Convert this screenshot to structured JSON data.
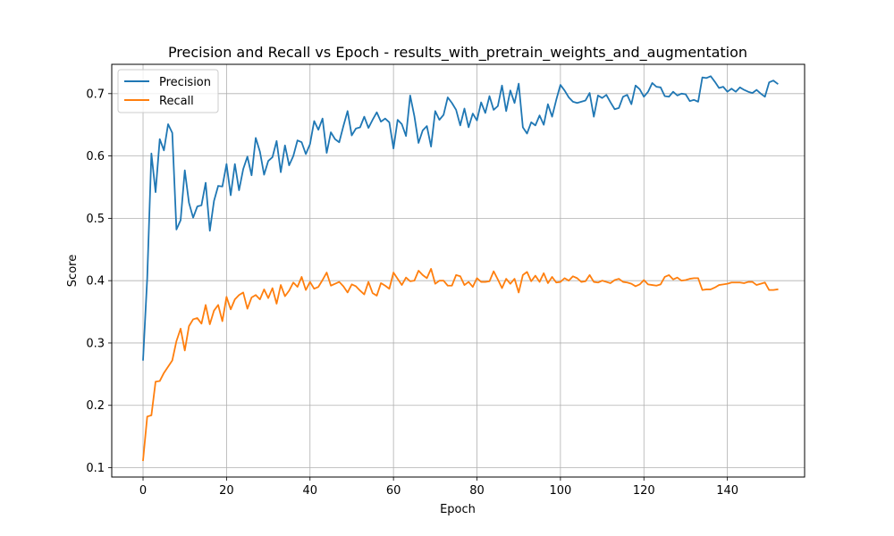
{
  "chart_data": {
    "type": "line",
    "title": "Precision and Recall vs Epoch - results_with_pretrain_weights_and_augmentation",
    "xlabel": "Epoch",
    "ylabel": "Score",
    "xlim": [
      -7.5,
      158.5
    ],
    "ylim": [
      0.085,
      0.747
    ],
    "grid": true,
    "legend_position": "top-left",
    "x_ticks": [
      0,
      20,
      40,
      60,
      80,
      100,
      120,
      140
    ],
    "y_ticks": [
      0.1,
      0.2,
      0.3,
      0.4,
      0.5,
      0.6,
      0.7
    ],
    "y_tick_labels": [
      "0.1",
      "0.2",
      "0.3",
      "0.4",
      "0.5",
      "0.6",
      "0.7"
    ],
    "series": [
      {
        "name": "Precision",
        "color": "#1f77b4",
        "values": [
          0.273,
          0.404,
          0.604,
          0.542,
          0.627,
          0.609,
          0.651,
          0.637,
          0.482,
          0.497,
          0.577,
          0.525,
          0.501,
          0.519,
          0.521,
          0.557,
          0.48,
          0.528,
          0.552,
          0.551,
          0.587,
          0.537,
          0.587,
          0.545,
          0.579,
          0.599,
          0.569,
          0.629,
          0.607,
          0.57,
          0.592,
          0.598,
          0.624,
          0.574,
          0.617,
          0.585,
          0.6,
          0.625,
          0.622,
          0.603,
          0.619,
          0.656,
          0.642,
          0.66,
          0.605,
          0.638,
          0.627,
          0.622,
          0.648,
          0.672,
          0.633,
          0.644,
          0.646,
          0.663,
          0.645,
          0.658,
          0.67,
          0.655,
          0.66,
          0.654,
          0.612,
          0.658,
          0.651,
          0.632,
          0.697,
          0.664,
          0.621,
          0.641,
          0.648,
          0.615,
          0.672,
          0.658,
          0.666,
          0.694,
          0.685,
          0.674,
          0.649,
          0.676,
          0.646,
          0.668,
          0.657,
          0.686,
          0.669,
          0.696,
          0.674,
          0.68,
          0.713,
          0.672,
          0.705,
          0.685,
          0.716,
          0.646,
          0.636,
          0.654,
          0.649,
          0.665,
          0.65,
          0.683,
          0.663,
          0.69,
          0.714,
          0.705,
          0.694,
          0.687,
          0.685,
          0.687,
          0.689,
          0.701,
          0.663,
          0.697,
          0.693,
          0.698,
          0.686,
          0.675,
          0.677,
          0.695,
          0.698,
          0.683,
          0.713,
          0.707,
          0.695,
          0.703,
          0.717,
          0.711,
          0.71,
          0.696,
          0.695,
          0.703,
          0.697,
          0.7,
          0.699,
          0.688,
          0.69,
          0.687,
          0.726,
          0.725,
          0.728,
          0.719,
          0.709,
          0.711,
          0.703,
          0.708,
          0.703,
          0.71,
          0.706,
          0.703,
          0.701,
          0.706,
          0.7,
          0.695,
          0.718,
          0.721,
          0.716
        ]
      },
      {
        "name": "Recall",
        "color": "#ff7f0e",
        "values": [
          0.112,
          0.182,
          0.184,
          0.238,
          0.239,
          0.252,
          0.262,
          0.272,
          0.303,
          0.323,
          0.288,
          0.327,
          0.338,
          0.34,
          0.331,
          0.361,
          0.33,
          0.352,
          0.361,
          0.335,
          0.374,
          0.354,
          0.37,
          0.377,
          0.381,
          0.355,
          0.373,
          0.377,
          0.37,
          0.386,
          0.372,
          0.388,
          0.363,
          0.393,
          0.375,
          0.384,
          0.397,
          0.39,
          0.406,
          0.385,
          0.398,
          0.387,
          0.39,
          0.401,
          0.413,
          0.392,
          0.395,
          0.398,
          0.391,
          0.381,
          0.394,
          0.391,
          0.384,
          0.378,
          0.398,
          0.38,
          0.376,
          0.396,
          0.392,
          0.387,
          0.413,
          0.403,
          0.393,
          0.405,
          0.399,
          0.4,
          0.416,
          0.409,
          0.404,
          0.419,
          0.395,
          0.4,
          0.4,
          0.392,
          0.392,
          0.409,
          0.407,
          0.393,
          0.398,
          0.39,
          0.404,
          0.398,
          0.398,
          0.399,
          0.415,
          0.402,
          0.388,
          0.403,
          0.395,
          0.403,
          0.381,
          0.409,
          0.414,
          0.399,
          0.408,
          0.398,
          0.412,
          0.396,
          0.406,
          0.397,
          0.398,
          0.404,
          0.4,
          0.407,
          0.404,
          0.398,
          0.399,
          0.409,
          0.398,
          0.397,
          0.4,
          0.398,
          0.396,
          0.401,
          0.403,
          0.398,
          0.397,
          0.395,
          0.391,
          0.394,
          0.401,
          0.394,
          0.393,
          0.392,
          0.394,
          0.406,
          0.409,
          0.402,
          0.405,
          0.4,
          0.401,
          0.403,
          0.404,
          0.404,
          0.385,
          0.386,
          0.386,
          0.389,
          0.393,
          0.394,
          0.395,
          0.397,
          0.397,
          0.397,
          0.396,
          0.398,
          0.398,
          0.393,
          0.395,
          0.397,
          0.385,
          0.385,
          0.386
        ]
      }
    ]
  }
}
